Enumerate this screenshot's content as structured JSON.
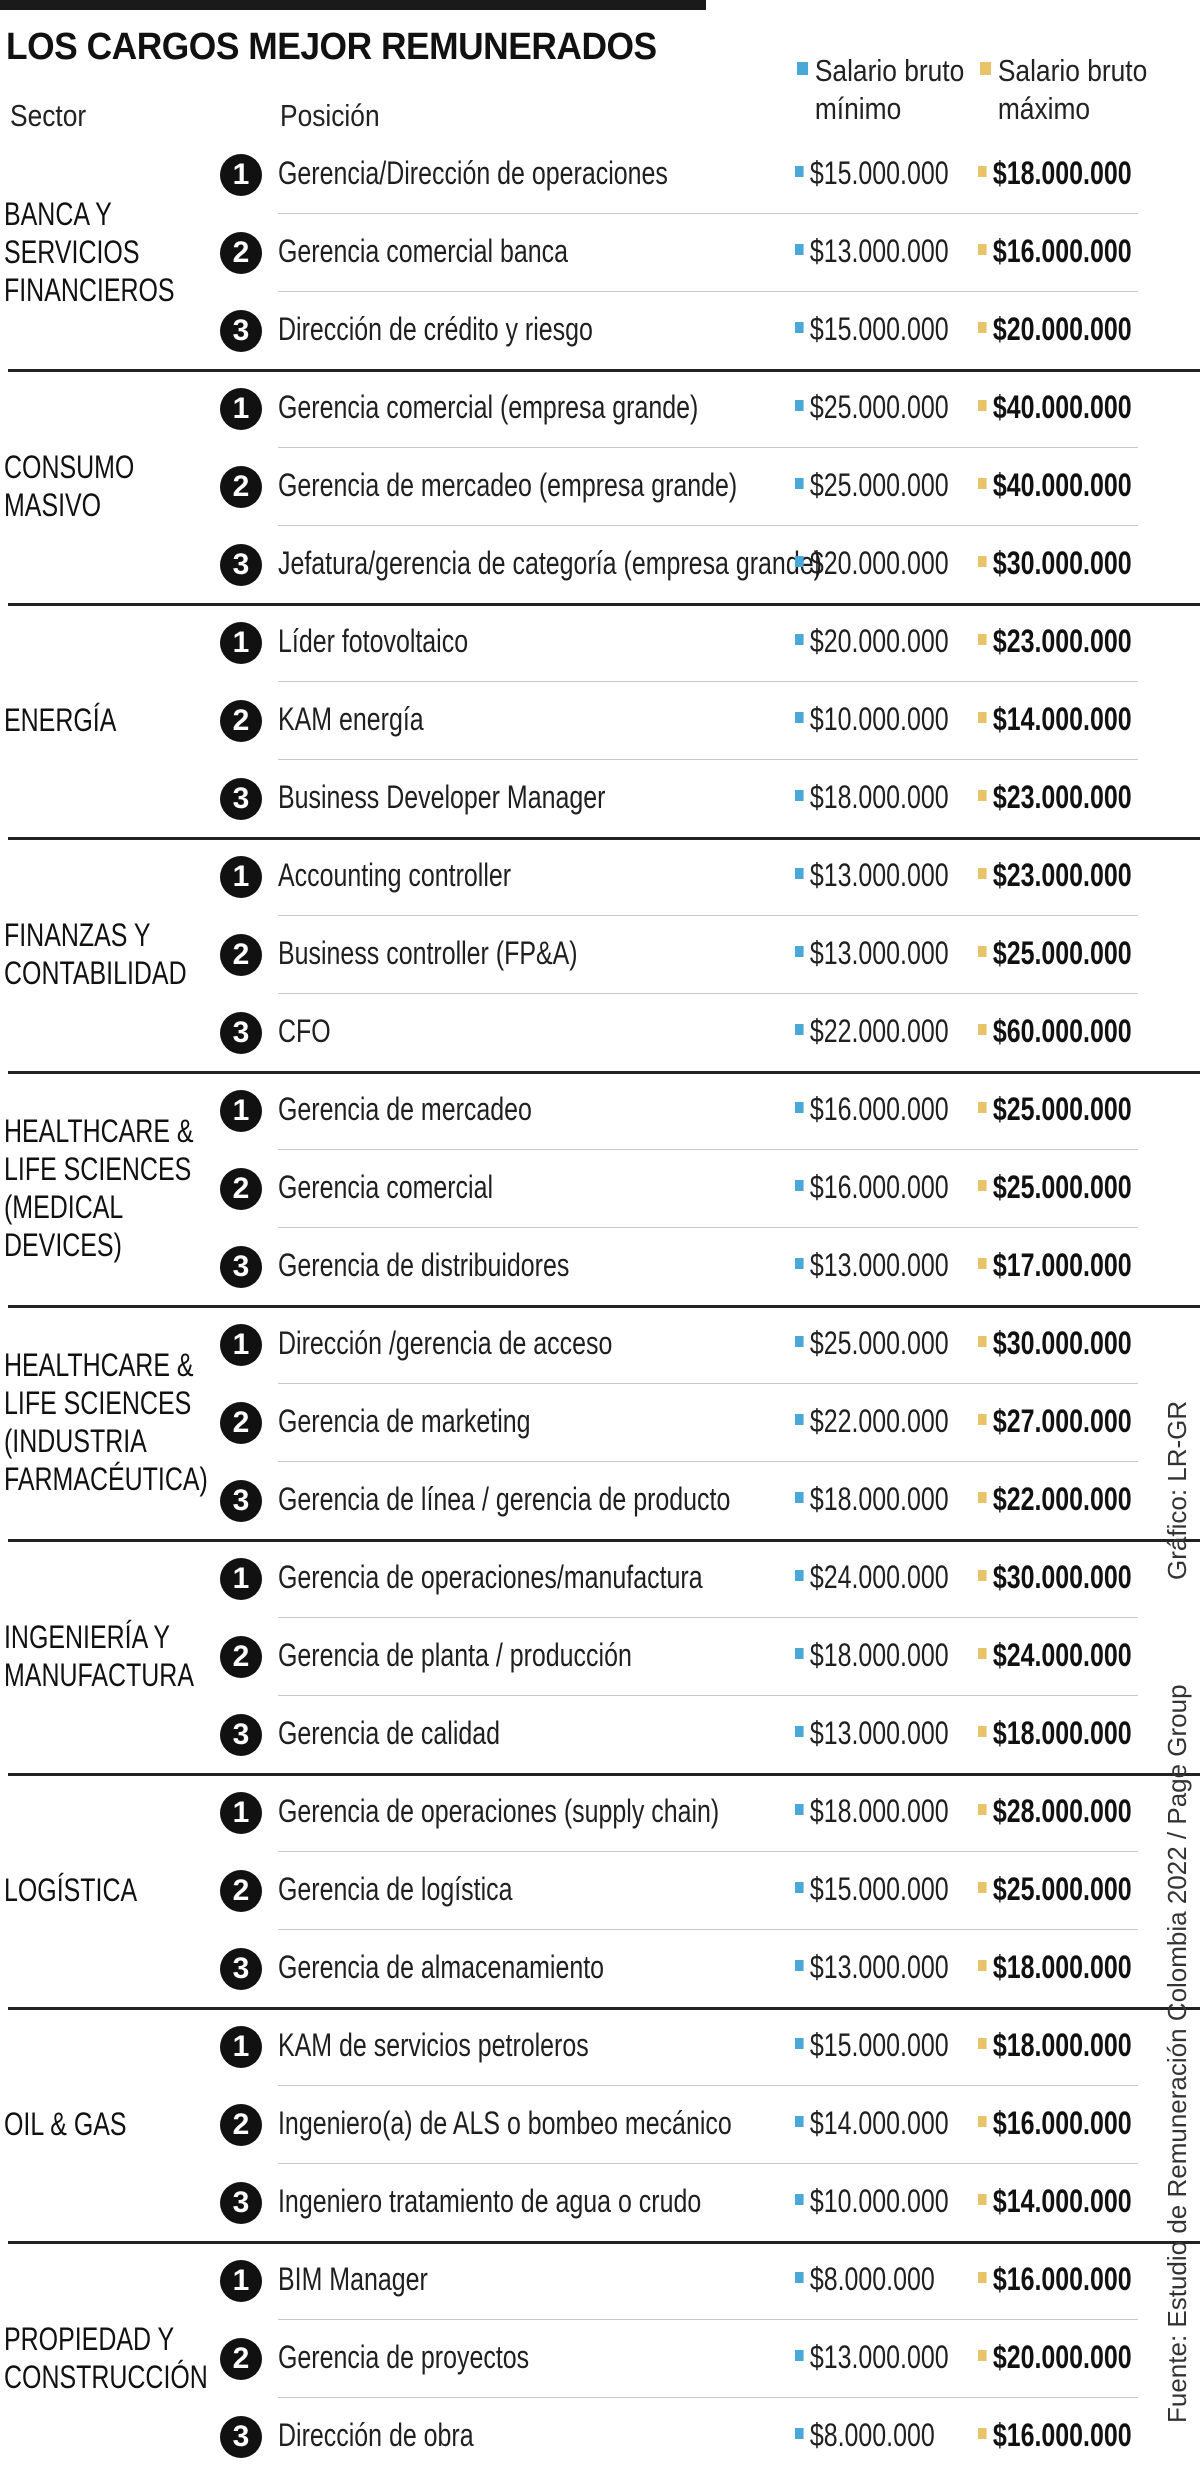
{
  "title": "LOS CARGOS MEJOR REMUNERADOS",
  "headers": {
    "sector": "Sector",
    "position": "Posición",
    "min_line1": "Salario bruto",
    "min_line2": "mínimo",
    "max_line1": "Salario bruto",
    "max_line2": "máximo"
  },
  "colors": {
    "min": "#4aa8d8",
    "max": "#e9c36a"
  },
  "sectors": [
    {
      "name": [
        "BANCA Y",
        "SERVICIOS",
        "FINANCIEROS"
      ],
      "rows": [
        {
          "rank": "1",
          "position": "Gerencia/Dirección de operaciones",
          "min": "$15.000.000",
          "max": "$18.000.000"
        },
        {
          "rank": "2",
          "position": "Gerencia comercial banca",
          "min": "$13.000.000",
          "max": "$16.000.000"
        },
        {
          "rank": "3",
          "position": "Dirección de crédito y riesgo",
          "min": "$15.000.000",
          "max": "$20.000.000"
        }
      ]
    },
    {
      "name": [
        "CONSUMO",
        "MASIVO"
      ],
      "rows": [
        {
          "rank": "1",
          "position": "Gerencia comercial (empresa grande)",
          "min": "$25.000.000",
          "max": "$40.000.000"
        },
        {
          "rank": "2",
          "position": "Gerencia de mercadeo (empresa grande)",
          "min": "$25.000.000",
          "max": "$40.000.000"
        },
        {
          "rank": "3",
          "position": "Jefatura/gerencia de categoría (empresa grande)",
          "min": "$20.000.000",
          "max": "$30.000.000"
        }
      ]
    },
    {
      "name": [
        "ENERGÍA"
      ],
      "rows": [
        {
          "rank": "1",
          "position": "Líder fotovoltaico",
          "min": "$20.000.000",
          "max": "$23.000.000"
        },
        {
          "rank": "2",
          "position": "KAM energía",
          "min": "$10.000.000",
          "max": "$14.000.000"
        },
        {
          "rank": "3",
          "position": "Business Developer Manager",
          "min": "$18.000.000",
          "max": "$23.000.000"
        }
      ]
    },
    {
      "name": [
        "FINANZAS Y",
        "CONTABILIDAD"
      ],
      "rows": [
        {
          "rank": "1",
          "position": "Accounting controller",
          "min": "$13.000.000",
          "max": "$23.000.000"
        },
        {
          "rank": "2",
          "position": "Business controller (FP&A)",
          "min": "$13.000.000",
          "max": "$25.000.000"
        },
        {
          "rank": "3",
          "position": "CFO",
          "min": "$22.000.000",
          "max": "$60.000.000"
        }
      ]
    },
    {
      "name": [
        "HEALTHCARE &",
        "LIFE SCIENCES",
        "(MEDICAL",
        "DEVICES)"
      ],
      "rows": [
        {
          "rank": "1",
          "position": "Gerencia de mercadeo",
          "min": "$16.000.000",
          "max": "$25.000.000"
        },
        {
          "rank": "2",
          "position": "Gerencia comercial",
          "min": "$16.000.000",
          "max": "$25.000.000"
        },
        {
          "rank": "3",
          "position": "Gerencia de distribuidores",
          "min": "$13.000.000",
          "max": "$17.000.000"
        }
      ]
    },
    {
      "name": [
        "HEALTHCARE &",
        "LIFE SCIENCES",
        "(INDUSTRIA",
        "FARMACÉUTICA)"
      ],
      "rows": [
        {
          "rank": "1",
          "position": "Dirección /gerencia de acceso",
          "min": "$25.000.000",
          "max": "$30.000.000"
        },
        {
          "rank": "2",
          "position": "Gerencia de marketing",
          "min": "$22.000.000",
          "max": "$27.000.000"
        },
        {
          "rank": "3",
          "position": "Gerencia de línea / gerencia de producto",
          "min": "$18.000.000",
          "max": "$22.000.000"
        }
      ]
    },
    {
      "name": [
        "INGENIERÍA Y",
        "MANUFACTURA"
      ],
      "rows": [
        {
          "rank": "1",
          "position": "Gerencia de operaciones/manufactura",
          "min": "$24.000.000",
          "max": "$30.000.000"
        },
        {
          "rank": "2",
          "position": "Gerencia de planta / producción",
          "min": "$18.000.000",
          "max": "$24.000.000"
        },
        {
          "rank": "3",
          "position": "Gerencia de calidad",
          "min": "$13.000.000",
          "max": "$18.000.000"
        }
      ]
    },
    {
      "name": [
        "LOGÍSTICA"
      ],
      "rows": [
        {
          "rank": "1",
          "position": "Gerencia de operaciones (supply chain)",
          "min": "$18.000.000",
          "max": "$28.000.000"
        },
        {
          "rank": "2",
          "position": "Gerencia de logística",
          "min": "$15.000.000",
          "max": "$25.000.000"
        },
        {
          "rank": "3",
          "position": "Gerencia de almacenamiento",
          "min": "$13.000.000",
          "max": "$18.000.000"
        }
      ]
    },
    {
      "name": [
        "OIL & GAS"
      ],
      "rows": [
        {
          "rank": "1",
          "position": "KAM de servicios petroleros",
          "min": "$15.000.000",
          "max": "$18.000.000"
        },
        {
          "rank": "2",
          "position": "Ingeniero(a) de ALS o bombeo mecánico",
          "min": "$14.000.000",
          "max": "$16.000.000"
        },
        {
          "rank": "3",
          "position": "Ingeniero tratamiento de agua o crudo",
          "min": "$10.000.000",
          "max": "$14.000.000"
        }
      ]
    },
    {
      "name": [
        "PROPIEDAD Y",
        "CONSTRUCCIÓN"
      ],
      "rows": [
        {
          "rank": "1",
          "position": "BIM Manager",
          "min": "$8.000.000",
          "max": "$16.000.000"
        },
        {
          "rank": "2",
          "position": "Gerencia de proyectos",
          "min": "$13.000.000",
          "max": "$20.000.000"
        },
        {
          "rank": "3",
          "position": "Dirección de obra",
          "min": "$8.000.000",
          "max": "$16.000.000"
        }
      ]
    }
  ],
  "credit_graphic": "Gráfico: LR-GR",
  "credit_source": "Fuente: Estudio de Remuneración Colombia 2022 / Page Group"
}
